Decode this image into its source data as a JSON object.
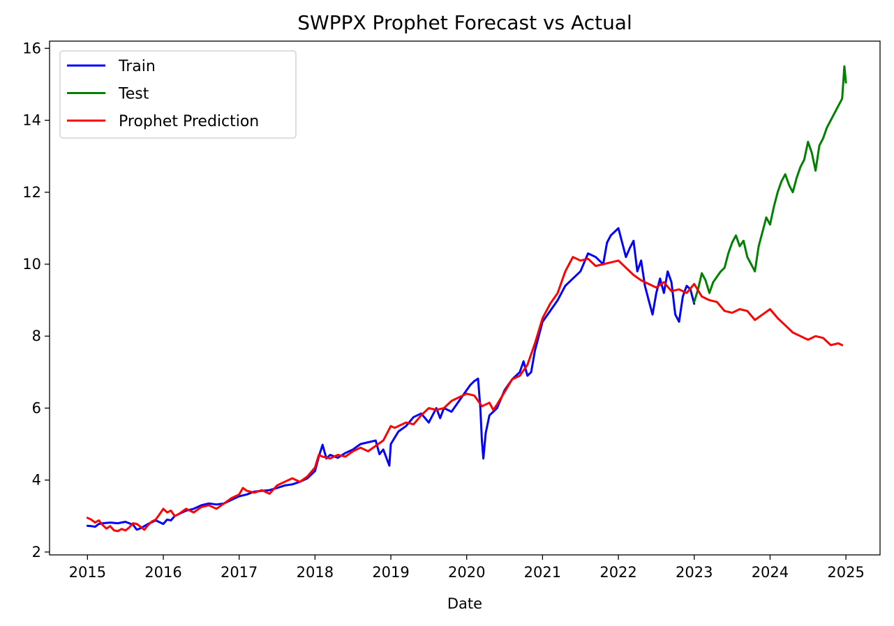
{
  "chart_data": {
    "type": "line",
    "title": "SWPPX Prophet Forecast vs Actual",
    "xlabel": "Date",
    "ylabel": "",
    "xlim": [
      2014.5,
      2025.45
    ],
    "ylim": [
      1.92,
      16.2
    ],
    "x_ticks": [
      2015,
      2016,
      2017,
      2018,
      2019,
      2020,
      2021,
      2022,
      2023,
      2024,
      2025
    ],
    "y_ticks": [
      2,
      4,
      6,
      8,
      10,
      12,
      14,
      16
    ],
    "grid": false,
    "legend_position": "upper-left",
    "series": [
      {
        "name": "Train",
        "color": "#0000ff",
        "x": [
          2015.0,
          2015.05,
          2015.1,
          2015.15,
          2015.2,
          2015.3,
          2015.4,
          2015.5,
          2015.55,
          2015.6,
          2015.65,
          2015.7,
          2015.8,
          2015.9,
          2016.0,
          2016.05,
          2016.1,
          2016.15,
          2016.2,
          2016.3,
          2016.4,
          2016.5,
          2016.6,
          2016.7,
          2016.8,
          2016.9,
          2017.0,
          2017.1,
          2017.2,
          2017.3,
          2017.4,
          2017.5,
          2017.6,
          2017.7,
          2017.8,
          2017.9,
          2018.0,
          2018.05,
          2018.1,
          2018.15,
          2018.2,
          2018.3,
          2018.4,
          2018.5,
          2018.6,
          2018.7,
          2018.8,
          2018.85,
          2018.9,
          2018.98,
          2019.0,
          2019.1,
          2019.2,
          2019.3,
          2019.4,
          2019.5,
          2019.6,
          2019.65,
          2019.7,
          2019.8,
          2019.9,
          2020.0,
          2020.05,
          2020.1,
          2020.15,
          2020.18,
          2020.2,
          2020.22,
          2020.25,
          2020.3,
          2020.35,
          2020.4,
          2020.5,
          2020.6,
          2020.7,
          2020.75,
          2020.8,
          2020.85,
          2020.9,
          2021.0,
          2021.1,
          2021.2,
          2021.3,
          2021.4,
          2021.5,
          2021.6,
          2021.7,
          2021.8,
          2021.85,
          2021.9,
          2022.0,
          2022.05,
          2022.1,
          2022.15,
          2022.2,
          2022.25,
          2022.3,
          2022.35,
          2022.4,
          2022.45,
          2022.5,
          2022.55,
          2022.6,
          2022.65,
          2022.7,
          2022.75,
          2022.8,
          2022.85,
          2022.9,
          2022.95,
          2023.0
        ],
        "values": [
          2.73,
          2.72,
          2.7,
          2.78,
          2.8,
          2.82,
          2.8,
          2.84,
          2.8,
          2.76,
          2.62,
          2.66,
          2.78,
          2.88,
          2.78,
          2.9,
          2.88,
          3.0,
          3.05,
          3.15,
          3.2,
          3.3,
          3.35,
          3.32,
          3.35,
          3.45,
          3.55,
          3.6,
          3.68,
          3.7,
          3.72,
          3.78,
          3.85,
          3.88,
          3.95,
          4.05,
          4.25,
          4.65,
          4.98,
          4.6,
          4.7,
          4.62,
          4.75,
          4.85,
          5.0,
          5.05,
          5.1,
          4.72,
          4.85,
          4.4,
          5.0,
          5.35,
          5.5,
          5.75,
          5.85,
          5.6,
          6.0,
          5.72,
          6.0,
          5.9,
          6.2,
          6.5,
          6.65,
          6.75,
          6.82,
          6.0,
          5.1,
          4.6,
          5.3,
          5.8,
          5.9,
          6.0,
          6.5,
          6.8,
          7.0,
          7.3,
          6.9,
          7.0,
          7.6,
          8.4,
          8.7,
          9.0,
          9.4,
          9.6,
          9.8,
          10.3,
          10.2,
          10.0,
          10.6,
          10.8,
          11.0,
          10.6,
          10.2,
          10.45,
          10.65,
          9.8,
          10.1,
          9.4,
          9.0,
          8.6,
          9.2,
          9.6,
          9.2,
          9.8,
          9.5,
          8.6,
          8.4,
          9.1,
          9.4,
          9.3,
          8.9
        ]
      },
      {
        "name": "Test",
        "color": "#008000",
        "x": [
          2023.0,
          2023.05,
          2023.1,
          2023.15,
          2023.2,
          2023.25,
          2023.3,
          2023.35,
          2023.4,
          2023.45,
          2023.5,
          2023.55,
          2023.6,
          2023.65,
          2023.7,
          2023.75,
          2023.8,
          2023.85,
          2023.9,
          2023.95,
          2024.0,
          2024.05,
          2024.1,
          2024.15,
          2024.2,
          2024.25,
          2024.3,
          2024.35,
          2024.4,
          2024.45,
          2024.5,
          2024.55,
          2024.6,
          2024.65,
          2024.7,
          2024.75,
          2024.8,
          2024.85,
          2024.9,
          2024.95,
          2024.98,
          2025.0
        ],
        "values": [
          8.95,
          9.3,
          9.75,
          9.55,
          9.2,
          9.5,
          9.65,
          9.8,
          9.9,
          10.3,
          10.6,
          10.8,
          10.5,
          10.65,
          10.2,
          10.0,
          9.8,
          10.5,
          10.9,
          11.3,
          11.1,
          11.6,
          12.0,
          12.3,
          12.5,
          12.2,
          12.0,
          12.4,
          12.7,
          12.9,
          13.4,
          13.1,
          12.6,
          13.3,
          13.5,
          13.8,
          14.0,
          14.2,
          14.4,
          14.6,
          15.5,
          15.05
        ]
      },
      {
        "name": "Prophet Prediction",
        "color": "#ff0000",
        "x": [
          2015.0,
          2015.05,
          2015.1,
          2015.15,
          2015.2,
          2015.25,
          2015.3,
          2015.35,
          2015.4,
          2015.45,
          2015.5,
          2015.55,
          2015.6,
          2015.65,
          2015.7,
          2015.75,
          2015.8,
          2015.85,
          2015.9,
          2015.95,
          2016.0,
          2016.05,
          2016.1,
          2016.15,
          2016.2,
          2016.3,
          2016.4,
          2016.5,
          2016.6,
          2016.7,
          2016.8,
          2016.9,
          2017.0,
          2017.05,
          2017.1,
          2017.2,
          2017.3,
          2017.4,
          2017.5,
          2017.6,
          2017.7,
          2017.8,
          2017.9,
          2018.0,
          2018.05,
          2018.1,
          2018.2,
          2018.3,
          2018.4,
          2018.5,
          2018.6,
          2018.7,
          2018.8,
          2018.9,
          2019.0,
          2019.05,
          2019.1,
          2019.2,
          2019.3,
          2019.4,
          2019.5,
          2019.6,
          2019.7,
          2019.8,
          2019.9,
          2020.0,
          2020.1,
          2020.2,
          2020.3,
          2020.35,
          2020.4,
          2020.5,
          2020.6,
          2020.7,
          2020.8,
          2020.9,
          2021.0,
          2021.1,
          2021.2,
          2021.3,
          2021.4,
          2021.5,
          2021.6,
          2021.7,
          2021.8,
          2021.9,
          2022.0,
          2022.1,
          2022.2,
          2022.3,
          2022.4,
          2022.5,
          2022.6,
          2022.7,
          2022.8,
          2022.9,
          2023.0,
          2023.1,
          2023.2,
          2023.3,
          2023.4,
          2023.5,
          2023.6,
          2023.7,
          2023.8,
          2023.9,
          2024.0,
          2024.1,
          2024.2,
          2024.3,
          2024.4,
          2024.5,
          2024.6,
          2024.7,
          2024.8,
          2024.9,
          2024.95
        ],
        "values": [
          2.95,
          2.9,
          2.82,
          2.88,
          2.75,
          2.65,
          2.72,
          2.6,
          2.58,
          2.64,
          2.6,
          2.68,
          2.8,
          2.78,
          2.7,
          2.62,
          2.75,
          2.85,
          2.9,
          3.05,
          3.2,
          3.1,
          3.15,
          3.0,
          3.05,
          3.2,
          3.1,
          3.25,
          3.3,
          3.2,
          3.35,
          3.5,
          3.6,
          3.78,
          3.7,
          3.65,
          3.72,
          3.62,
          3.85,
          3.95,
          4.05,
          3.95,
          4.1,
          4.35,
          4.7,
          4.65,
          4.6,
          4.7,
          4.65,
          4.8,
          4.9,
          4.8,
          4.95,
          5.1,
          5.5,
          5.45,
          5.5,
          5.6,
          5.55,
          5.8,
          6.0,
          5.95,
          6.0,
          6.2,
          6.3,
          6.4,
          6.35,
          6.05,
          6.15,
          5.95,
          6.1,
          6.45,
          6.8,
          6.9,
          7.2,
          7.8,
          8.5,
          8.9,
          9.2,
          9.8,
          10.2,
          10.1,
          10.15,
          9.95,
          10.0,
          10.05,
          10.1,
          9.9,
          9.7,
          9.55,
          9.45,
          9.35,
          9.5,
          9.25,
          9.3,
          9.2,
          9.45,
          9.1,
          9.0,
          8.95,
          8.7,
          8.65,
          8.75,
          8.7,
          8.45,
          8.6,
          8.75,
          8.5,
          8.3,
          8.1,
          8.0,
          7.9,
          8.0,
          7.95,
          7.75,
          7.8,
          7.75
        ]
      }
    ]
  }
}
